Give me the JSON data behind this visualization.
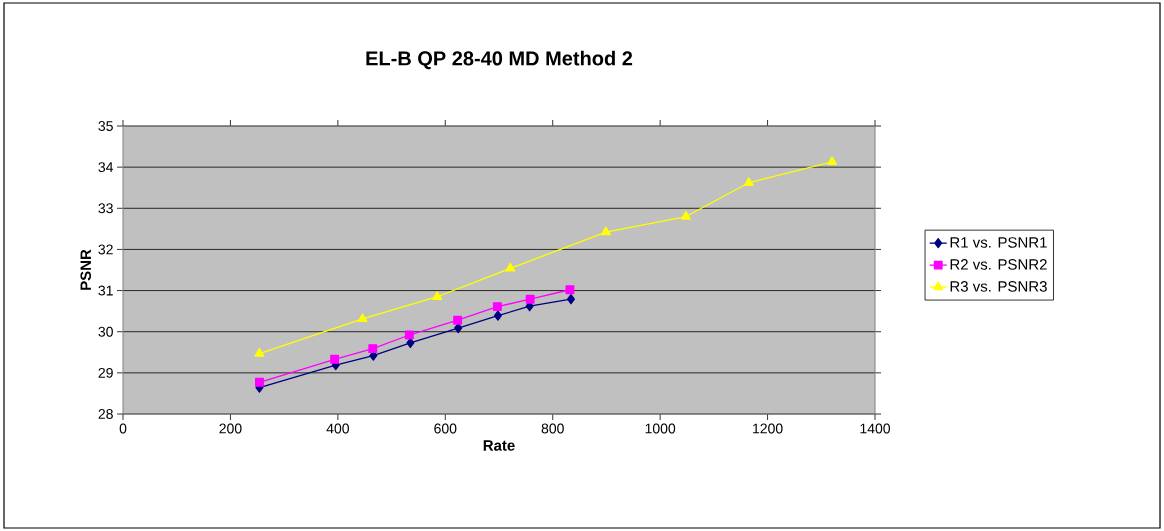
{
  "chart_data": {
    "type": "line",
    "title": "EL-B QP 28-40 MD Method 2",
    "xlabel": "Rate",
    "ylabel": "PSNR",
    "xlim": [
      0,
      1400
    ],
    "xticks": [
      0,
      200,
      400,
      600,
      800,
      1000,
      1200,
      1400
    ],
    "ylim": [
      28,
      35
    ],
    "yticks": [
      28,
      29,
      30,
      31,
      32,
      33,
      34,
      35
    ],
    "grid": "y",
    "legend": "right",
    "series": [
      {
        "name": "R1 vs. PSNR1",
        "color": "#000080",
        "marker": "diamond",
        "x": [
          254,
          396,
          466,
          535,
          624,
          698,
          757,
          834
        ],
        "values": [
          28.64,
          29.19,
          29.42,
          29.73,
          30.09,
          30.39,
          30.62,
          30.79
        ]
      },
      {
        "name": "R2 vs. PSNR2",
        "color": "#ff00ff",
        "marker": "square",
        "x": [
          254,
          394,
          465,
          533,
          623,
          697,
          758,
          832
        ],
        "values": [
          28.77,
          29.33,
          29.59,
          29.92,
          30.28,
          30.61,
          30.79,
          31.02
        ]
      },
      {
        "name": "R3 vs. PSNR3",
        "color": "#ffff00",
        "marker": "triangle",
        "x": [
          254,
          446,
          585,
          721,
          899,
          1048,
          1165,
          1320
        ],
        "values": [
          29.47,
          30.31,
          30.85,
          31.54,
          32.42,
          32.8,
          33.62,
          34.13
        ]
      }
    ]
  }
}
